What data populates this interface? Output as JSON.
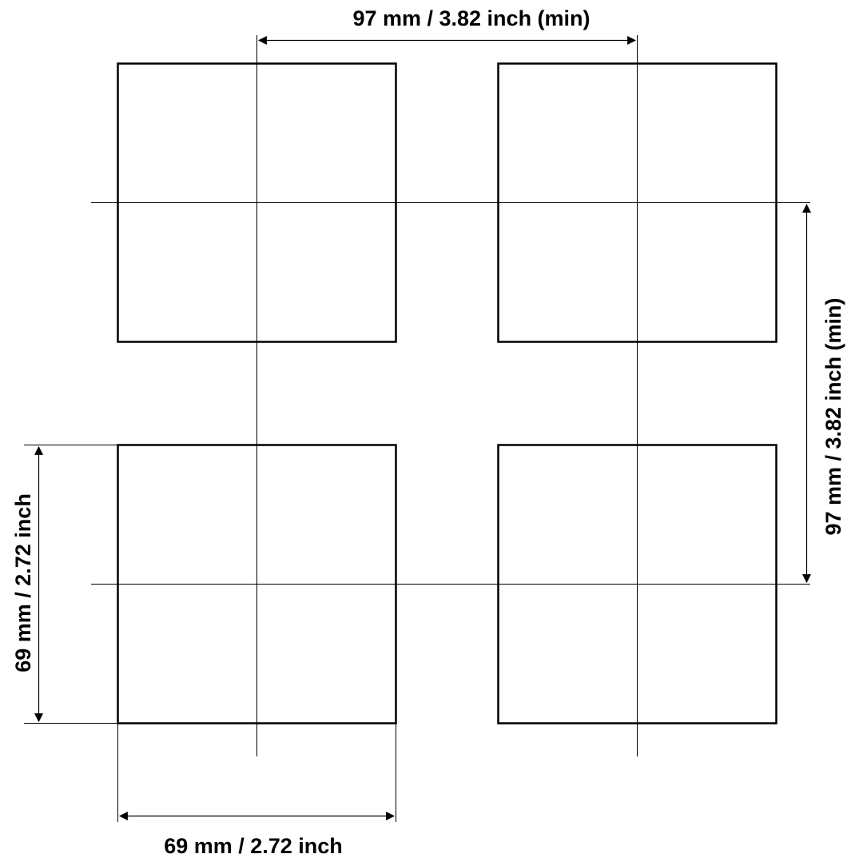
{
  "diagram": {
    "top_dimension_label": "97 mm / 3.82 inch (min)",
    "right_dimension_label": "97 mm / 3.82 inch (min)",
    "left_dimension_label": "69 mm / 2.72 inch",
    "bottom_dimension_label": "69 mm / 2.72 inch"
  },
  "colors": {
    "stroke": "#000000",
    "background": "#ffffff"
  }
}
